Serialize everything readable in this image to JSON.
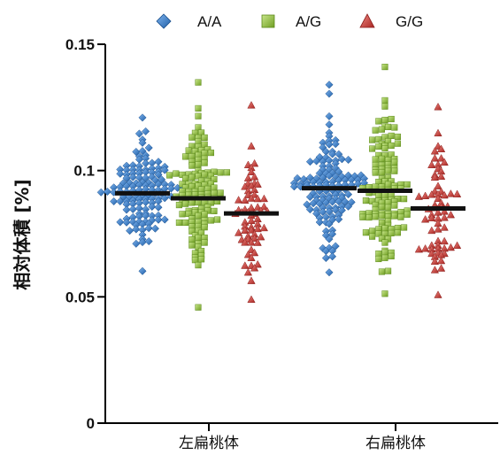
{
  "chart_data": {
    "type": "scatter",
    "subtype": "beeswarm-dot-plot",
    "title": "",
    "xlabel": "",
    "ylabel": "相対体積 [%]",
    "ylim": [
      0,
      0.15
    ],
    "yticks": [
      "0",
      "0.05",
      "0.1",
      "0.15"
    ],
    "ytick_values": [
      0,
      0.05,
      0.1,
      0.15
    ],
    "categories": [
      "左扁桃体",
      "右扁桃体"
    ],
    "legend_position": "top",
    "grid": false,
    "series": [
      {
        "name": "A/A",
        "color": "#2e75c8",
        "marker": "diamond",
        "mean": [
          0.091,
          0.093
        ],
        "range": [
          [
            0.06,
            0.121
          ],
          [
            0.06,
            0.134
          ]
        ],
        "n": [
          130,
          130
        ]
      },
      {
        "name": "A/G",
        "color": "#8fc43c",
        "marker": "square",
        "mean": [
          0.089,
          0.092
        ],
        "range": [
          [
            0.046,
            0.135
          ],
          [
            0.051,
            0.141
          ]
        ],
        "n": [
          125,
          125
        ]
      },
      {
        "name": "G/G",
        "color": "#d03a36",
        "marker": "triangle",
        "mean": [
          0.083,
          0.085
        ],
        "range": [
          [
            0.049,
            0.126
          ],
          [
            0.051,
            0.125
          ]
        ],
        "n": [
          65,
          65
        ]
      }
    ]
  }
}
